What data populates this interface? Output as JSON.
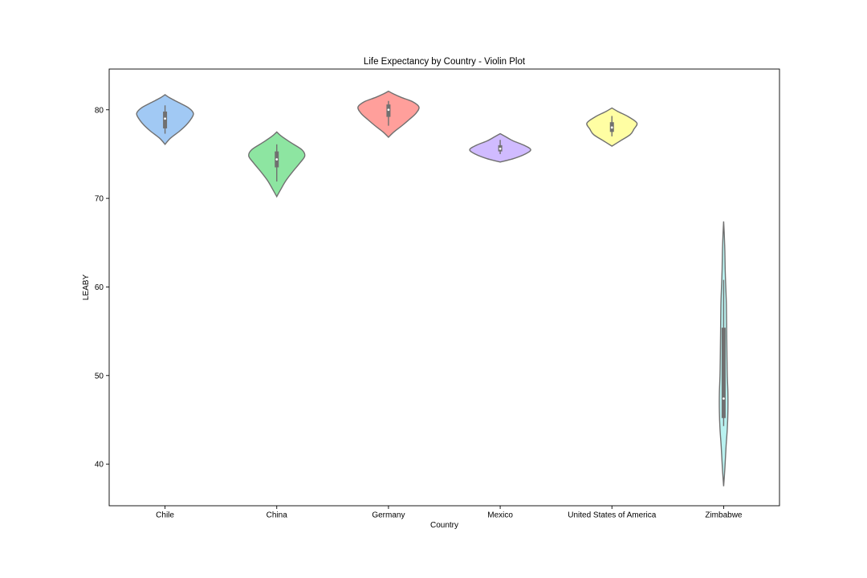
{
  "chart_data": {
    "type": "violin",
    "title": "Life Expectancy by Country - Violin Plot",
    "xlabel": "Country",
    "ylabel": "LEABY",
    "ylim": [
      35.3,
      84.6
    ],
    "yticks": [
      40,
      50,
      60,
      70,
      80
    ],
    "grid": false,
    "legend": "none",
    "categories": [
      "Chile",
      "China",
      "Germany",
      "Mexico",
      "United States of America",
      "Zimbabwe"
    ],
    "colors": {
      "violin_stroke": "#707070",
      "box_fill": "#707070",
      "median_marker": "#ffffff"
    },
    "series": [
      {
        "category": "Chile",
        "fill": "#a1c9f4",
        "min": 77.3,
        "q1": 77.9,
        "median": 79.0,
        "q3": 79.8,
        "max": 80.5,
        "density": [
          [
            76.1,
            0.0
          ],
          [
            76.8,
            0.18
          ],
          [
            77.6,
            0.48
          ],
          [
            78.3,
            0.7
          ],
          [
            79.0,
            0.86
          ],
          [
            79.6,
            0.93
          ],
          [
            80.2,
            0.78
          ],
          [
            80.8,
            0.46
          ],
          [
            81.3,
            0.18
          ],
          [
            81.7,
            0.0
          ]
        ]
      },
      {
        "category": "China",
        "fill": "#8de5a1",
        "min": 71.9,
        "q1": 73.5,
        "median": 74.4,
        "q3": 75.3,
        "max": 76.1,
        "density": [
          [
            70.2,
            0.0
          ],
          [
            71.0,
            0.13
          ],
          [
            72.0,
            0.3
          ],
          [
            73.0,
            0.52
          ],
          [
            74.0,
            0.76
          ],
          [
            74.8,
            0.92
          ],
          [
            75.5,
            0.82
          ],
          [
            76.3,
            0.46
          ],
          [
            77.0,
            0.16
          ],
          [
            77.5,
            0.0
          ]
        ]
      },
      {
        "category": "Germany",
        "fill": "#ff9f9b",
        "min": 78.2,
        "q1": 79.2,
        "median": 80.0,
        "q3": 80.6,
        "max": 81.0,
        "density": [
          [
            76.9,
            0.0
          ],
          [
            77.5,
            0.18
          ],
          [
            78.2,
            0.44
          ],
          [
            78.9,
            0.68
          ],
          [
            79.6,
            0.9
          ],
          [
            80.3,
            1.0
          ],
          [
            80.9,
            0.8
          ],
          [
            81.4,
            0.42
          ],
          [
            81.8,
            0.16
          ],
          [
            82.1,
            0.0
          ]
        ]
      },
      {
        "category": "Mexico",
        "fill": "#d0bbff",
        "min": 75.0,
        "q1": 75.3,
        "median": 75.6,
        "q3": 76.0,
        "max": 76.6,
        "density": [
          [
            74.1,
            0.0
          ],
          [
            74.5,
            0.45
          ],
          [
            75.0,
            0.82
          ],
          [
            75.5,
            1.0
          ],
          [
            76.0,
            0.78
          ],
          [
            76.5,
            0.42
          ],
          [
            77.0,
            0.16
          ],
          [
            77.3,
            0.0
          ]
        ]
      },
      {
        "category": "United States of America",
        "fill": "#fffea3",
        "min": 77.0,
        "q1": 77.5,
        "median": 78.0,
        "q3": 78.6,
        "max": 79.3,
        "density": [
          [
            75.9,
            0.0
          ],
          [
            76.5,
            0.28
          ],
          [
            77.2,
            0.6
          ],
          [
            77.8,
            0.72
          ],
          [
            78.5,
            0.82
          ],
          [
            79.2,
            0.55
          ],
          [
            79.8,
            0.2
          ],
          [
            80.2,
            0.0
          ]
        ]
      },
      {
        "category": "Zimbabwe",
        "fill": "#b9f2f0",
        "min": 44.3,
        "q1": 45.2,
        "median": 47.4,
        "q3": 55.4,
        "max": 60.8,
        "density": [
          [
            37.5,
            0.0
          ],
          [
            39.5,
            0.04
          ],
          [
            42.0,
            0.08
          ],
          [
            44.0,
            0.12
          ],
          [
            46.0,
            0.14
          ],
          [
            48.0,
            0.14
          ],
          [
            50.0,
            0.12
          ],
          [
            52.0,
            0.11
          ],
          [
            55.0,
            0.1
          ],
          [
            58.0,
            0.09
          ],
          [
            60.0,
            0.07
          ],
          [
            62.0,
            0.05
          ],
          [
            64.0,
            0.04
          ],
          [
            66.0,
            0.02
          ],
          [
            67.4,
            0.0
          ]
        ]
      }
    ]
  }
}
